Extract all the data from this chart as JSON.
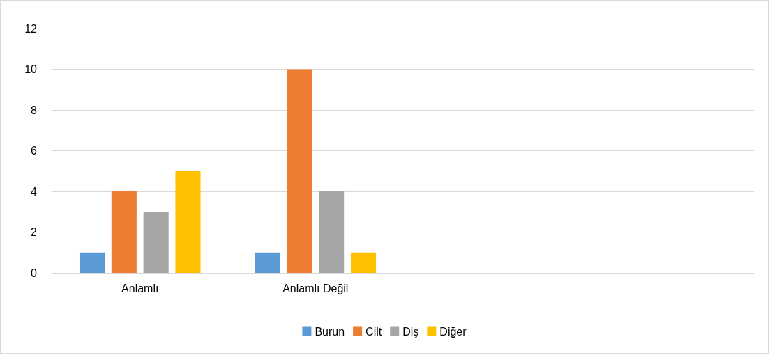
{
  "chart_data": {
    "type": "bar",
    "categories": [
      "Anlamlı",
      "Anlamlı Değil",
      null,
      null
    ],
    "series": [
      {
        "name": "Burun",
        "color": "#5b9bd5",
        "values": [
          1,
          1,
          null,
          null
        ]
      },
      {
        "name": "Cilt",
        "color": "#ed7d31",
        "values": [
          4,
          10,
          null,
          null
        ]
      },
      {
        "name": "Diş",
        "color": "#a5a5a5",
        "values": [
          3,
          4,
          null,
          null
        ]
      },
      {
        "name": "Diğer",
        "color": "#ffc000",
        "values": [
          5,
          1,
          null,
          null
        ]
      }
    ],
    "ylim": [
      0,
      12
    ],
    "yticks": [
      0,
      2,
      4,
      6,
      8,
      10,
      12
    ],
    "grid": "y",
    "legend": "bottom"
  }
}
